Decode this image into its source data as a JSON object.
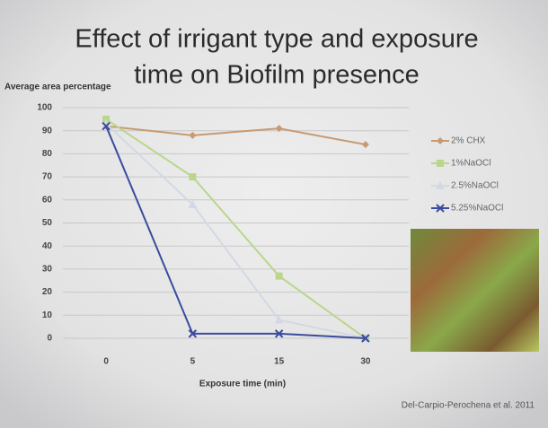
{
  "chart_data": {
    "type": "line",
    "title_lines": [
      "Effect of irrigant type and exposure",
      "time on Biofilm presence"
    ],
    "y_label": "Average area percentage",
    "x_label": "Exposure time (min)",
    "categories": [
      "0",
      "5",
      "15",
      "30"
    ],
    "series": [
      {
        "name": "2% CHX",
        "color": "#c79a72",
        "marker": "diamond",
        "values": [
          92,
          88,
          91,
          84
        ]
      },
      {
        "name": "1%NaOCl",
        "color": "#b9d68a",
        "marker": "square",
        "values": [
          95,
          70,
          27,
          0
        ]
      },
      {
        "name": "2.5%NaOCl",
        "color": "#d2d9e4",
        "marker": "triangle",
        "values": [
          93,
          58,
          8,
          0
        ]
      },
      {
        "name": "5.25%NaOCl",
        "color": "#3a4c9e",
        "marker": "x",
        "values": [
          92,
          2,
          2,
          0
        ]
      }
    ],
    "ylim": [
      0,
      100
    ],
    "yticks": [
      0,
      10,
      20,
      30,
      40,
      50,
      60,
      70,
      80,
      90,
      100
    ],
    "grid": true,
    "legend": "right",
    "source": "Del-Carpio-Perochena et al. 2011"
  }
}
